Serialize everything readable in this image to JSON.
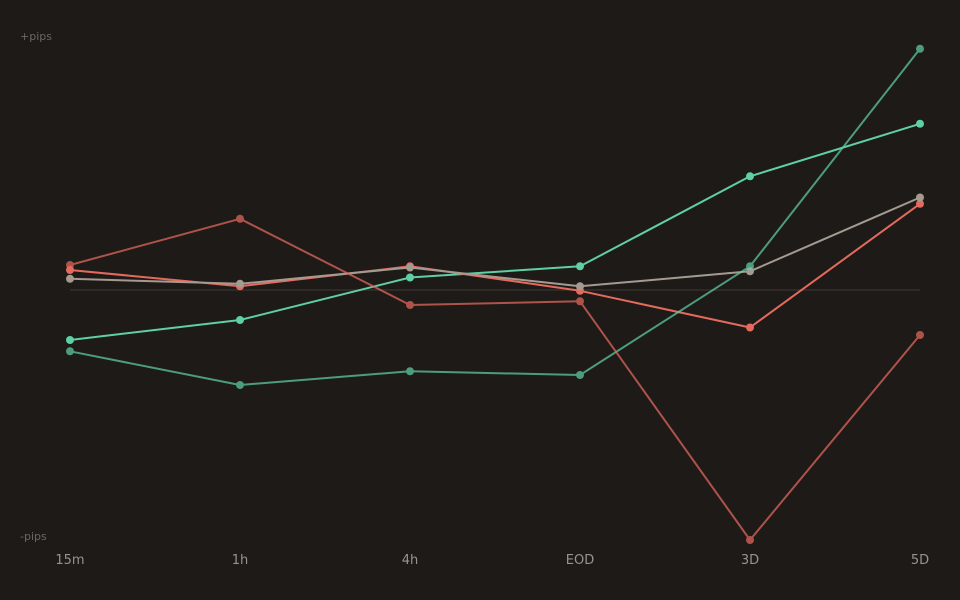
{
  "chart_data": {
    "type": "line",
    "title": "",
    "xlabel": "",
    "ylabel": "",
    "y_top_label": "+pips",
    "y_bottom_label": "-pips",
    "categories": [
      "15m",
      "1h",
      "4h",
      "EOD",
      "3D",
      "5D"
    ],
    "ylim": [
      -100,
      100
    ],
    "zero_line": true,
    "grid": false,
    "legend": "none",
    "series": [
      {
        "color": "#5fcfa4",
        "opacity": 1.0,
        "values": [
          -20,
          -12,
          5,
          9.5,
          45.5,
          66.5
        ]
      },
      {
        "color": "#e56a5e",
        "opacity": 1.0,
        "values": [
          8,
          1.5,
          9.5,
          -0.3,
          -15,
          34.5
        ]
      },
      {
        "color": "#a59a90",
        "opacity": 1.0,
        "values": [
          4.5,
          2.5,
          9,
          1.5,
          7.5,
          37
        ]
      },
      {
        "color": "#5fcfa4",
        "opacity": 0.72,
        "values": [
          -24.5,
          -38,
          -32.5,
          -34,
          9.5,
          96.5
        ]
      },
      {
        "color": "#e56a5e",
        "opacity": 0.72,
        "values": [
          10,
          28.5,
          -6,
          -4.5,
          -100,
          -18
        ]
      }
    ],
    "colors": {
      "background": "#1e1a18",
      "zero_line": "#35302d",
      "tick_text": "#9a928c",
      "edge_text": "#6e6761"
    }
  }
}
